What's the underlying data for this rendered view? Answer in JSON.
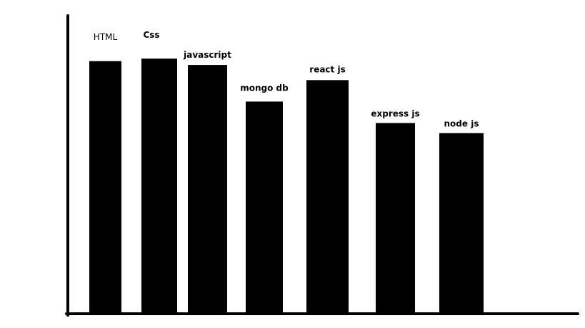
{
  "chart_data": {
    "type": "bar",
    "categories": [
      "HTML",
      "Css",
      "javascript",
      "mongo db",
      "react js",
      "express js",
      "node js"
    ],
    "values": [
      100,
      101,
      98.5,
      84,
      92.5,
      75.5,
      71.5
    ],
    "title": "",
    "xlabel": "",
    "ylabel": "",
    "ylim": [
      0,
      118
    ],
    "grid": false,
    "legend": "none",
    "colors": {
      "bar": "#000000",
      "axis": "#000000",
      "background": "#ffffff"
    }
  }
}
